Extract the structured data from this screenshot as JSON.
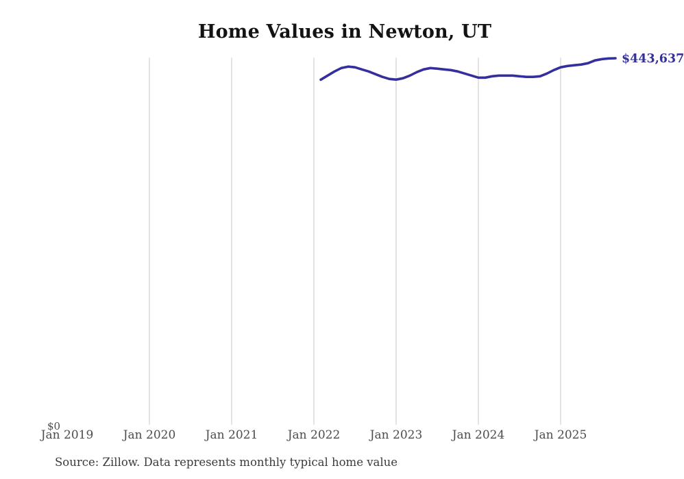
{
  "title": "Home Values in Newton, UT",
  "source_note": "Source: Zillow. Data represents monthly typical home value",
  "colors": {
    "line": "#332F9D",
    "end_label": "#332F9D",
    "gridline": "#C9C9C9",
    "tick_label": "#4C4C4C",
    "title": "#131313",
    "source": "#3B3B3B"
  },
  "chart_data": {
    "type": "line",
    "title": "Home Values in Newton, UT",
    "xlabel": "",
    "ylabel": "",
    "ylabel_zero": "$0",
    "end_value_label": "$443,637",
    "latest_value": 443637,
    "ylim": [
      0,
      444500
    ],
    "xlim": [
      "Jan 2019",
      "Sep 2025"
    ],
    "grid": "vertical-only",
    "legend": "none",
    "x_ticks": [
      {
        "label": "Jan 2019",
        "gridline": false
      },
      {
        "label": "Jan 2020",
        "gridline": true
      },
      {
        "label": "Jan 2021",
        "gridline": true
      },
      {
        "label": "Jan 2022",
        "gridline": true
      },
      {
        "label": "Jan 2023",
        "gridline": true
      },
      {
        "label": "Jan 2024",
        "gridline": true
      },
      {
        "label": "Jan 2025",
        "gridline": true
      }
    ],
    "series": [
      {
        "name": "Monthly typical home value",
        "months": [
          "Feb 2022",
          "Mar 2022",
          "Apr 2022",
          "May 2022",
          "Jun 2022",
          "Jul 2022",
          "Aug 2022",
          "Sep 2022",
          "Oct 2022",
          "Nov 2022",
          "Dec 2022",
          "Jan 2023",
          "Feb 2023",
          "Mar 2023",
          "Apr 2023",
          "May 2023",
          "Jun 2023",
          "Jul 2023",
          "Aug 2023",
          "Sep 2023",
          "Oct 2023",
          "Nov 2023",
          "Dec 2023",
          "Jan 2024",
          "Feb 2024",
          "Mar 2024",
          "Apr 2024",
          "May 2024",
          "Jun 2024",
          "Jul 2024",
          "Aug 2024",
          "Sep 2024",
          "Oct 2024",
          "Nov 2024",
          "Dec 2024",
          "Jan 2025",
          "Feb 2025",
          "Mar 2025",
          "Apr 2025",
          "May 2025",
          "Jun 2025",
          "Jul 2025",
          "Aug 2025",
          "Sep 2025"
        ],
        "values": [
          417600,
          422600,
          427600,
          431800,
          433500,
          432700,
          430100,
          427600,
          424300,
          421000,
          418500,
          417700,
          419400,
          422600,
          426800,
          430100,
          431800,
          431000,
          430100,
          429300,
          427600,
          425100,
          422600,
          420100,
          420100,
          421800,
          422600,
          422600,
          422600,
          421800,
          421000,
          421000,
          421800,
          425100,
          429300,
          432700,
          434300,
          435200,
          436000,
          437700,
          441000,
          442600,
          443400,
          443637
        ]
      }
    ]
  }
}
